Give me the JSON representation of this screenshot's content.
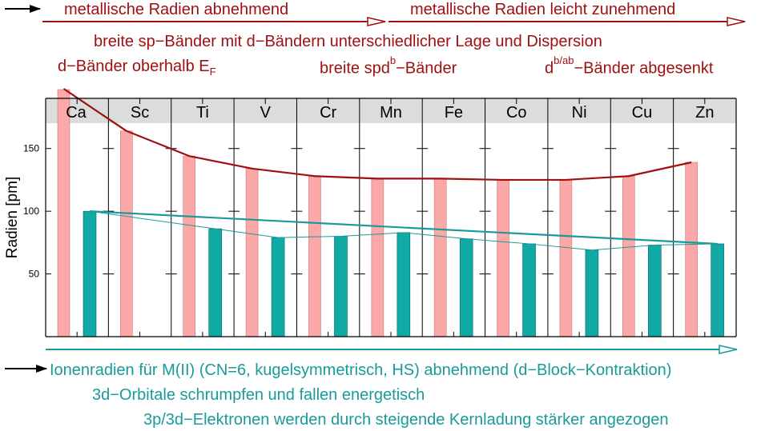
{
  "colors": {
    "metallic": "#a01010",
    "metallic_bar": "#fba8a8",
    "ionic": "#1a9a9a",
    "ionic_bar": "#11a9a4",
    "header_band": "#dcdcdc"
  },
  "annotations": {
    "top_left_arrow": "metallische Radien abnehmend",
    "top_right_arrow": "metallische Radien leicht zunehmend",
    "line2": "breite sp−Bänder mit d−Bändern  unterschiedlicher Lage und Dispersion",
    "line3a_main": "d−Bänder oberhalb E",
    "line3a_sub": "F",
    "line3b_main": "breite spd",
    "line3b_sup": "b",
    "line3b_tail": "−Bänder",
    "line3c_main": "d",
    "line3c_sup": "b/ab",
    "line3c_tail": "−Bänder abgesenkt",
    "bottom1": "Ionenradien für M(II) (CN=6, kugelsymmetrisch, HS) abnehmend (d−Block−Kontraktion)",
    "bottom2": "3d−Orbitale schrumpfen  und fallen energetisch",
    "bottom3": "3p/3d−Elektronen werden durch steigende Kernladung stärker angezogen"
  },
  "chart_data": {
    "type": "bar",
    "title": "",
    "xlabel": "",
    "ylabel": "Radien [pm]",
    "ylim": [
      0,
      190
    ],
    "yticks": [
      50,
      100,
      150
    ],
    "categories": [
      "Ca",
      "Sc",
      "Ti",
      "V",
      "Cr",
      "Mn",
      "Fe",
      "Co",
      "Ni",
      "Cu",
      "Zn"
    ],
    "series": [
      {
        "name": "metallische Radien",
        "style": "bar+curve",
        "values": [
          197,
          164,
          144,
          134,
          128,
          126,
          126,
          125,
          125,
          128,
          139
        ]
      },
      {
        "name": "Ionenradien M(II)",
        "style": "bar+polyline",
        "values": [
          100,
          null,
          86,
          79,
          80,
          83,
          78,
          74,
          69,
          73,
          74
        ]
      }
    ],
    "trend_line": {
      "name": "Ionenradien Trend",
      "from": [
        "Ca",
        100
      ],
      "to": [
        "Zn",
        74
      ]
    }
  }
}
